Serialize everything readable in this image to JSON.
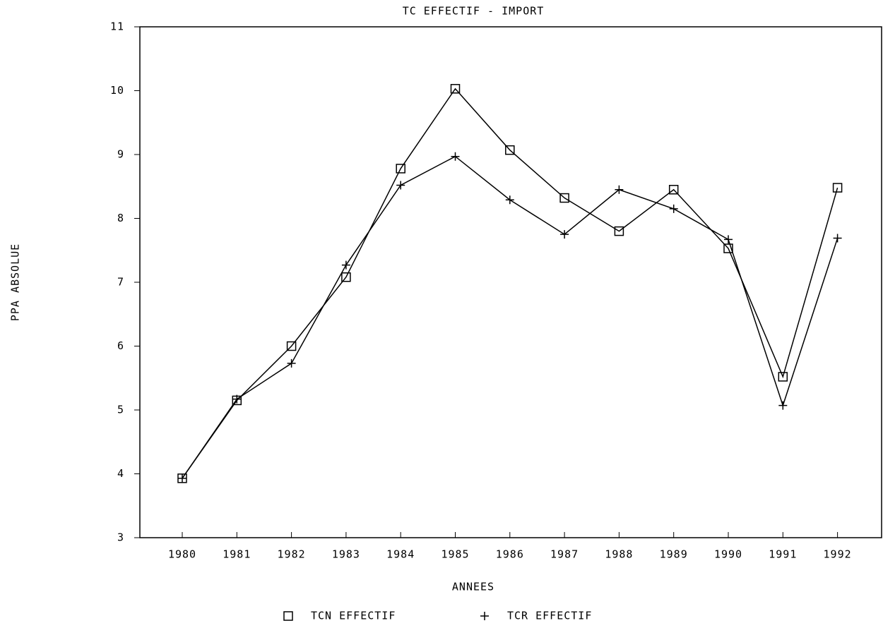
{
  "chart_data": {
    "type": "line",
    "title": "TC EFFECTIF - IMPORT",
    "xlabel": "ANNEES",
    "ylabel": "PPA ABSOLUE",
    "categories": [
      "1980",
      "1981",
      "1982",
      "1983",
      "1984",
      "1985",
      "1986",
      "1987",
      "1988",
      "1989",
      "1990",
      "1991",
      "1992"
    ],
    "series": [
      {
        "name": "TCN EFFECTIF",
        "color": "#000000",
        "marker": "square",
        "values": [
          3.93,
          5.15,
          6.0,
          7.08,
          8.78,
          10.03,
          9.07,
          8.32,
          7.8,
          8.45,
          7.53,
          5.52,
          8.48
        ]
      },
      {
        "name": "TCR EFFECTIF",
        "color": "#000000",
        "marker": "plus",
        "values": [
          3.93,
          5.17,
          5.73,
          7.27,
          8.52,
          8.97,
          8.29,
          7.75,
          8.45,
          8.15,
          7.67,
          5.07,
          7.69
        ]
      }
    ],
    "ylim": [
      3,
      11
    ],
    "yticks": [
      3,
      4,
      5,
      6,
      7,
      8,
      9,
      10,
      11
    ],
    "grid": false,
    "legend": "bottom"
  }
}
